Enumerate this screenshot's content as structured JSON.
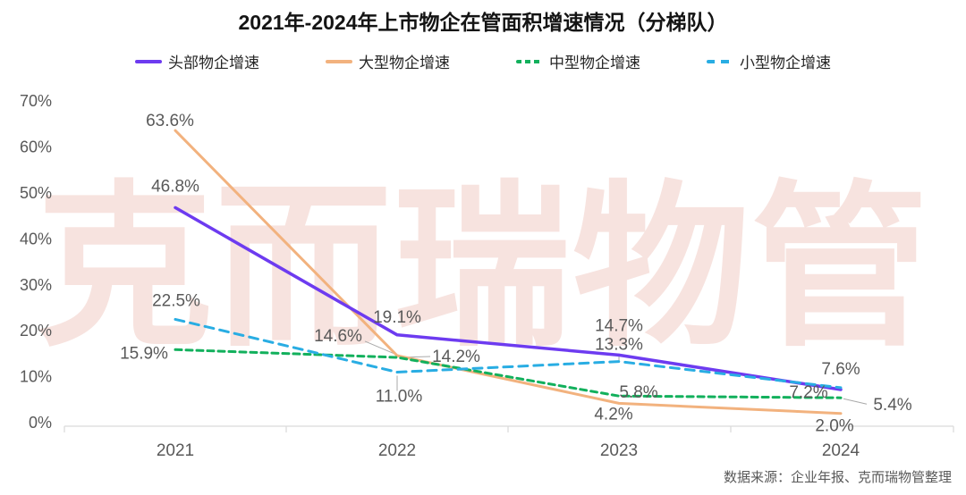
{
  "title": "2021年-2024年上市物企在管面积增速情况（分梯队）",
  "source": "数据来源：企业年报、克而瑞物管整理",
  "watermark": "克而瑞物管",
  "chart_data": {
    "type": "line",
    "categories": [
      "2021",
      "2022",
      "2023",
      "2024"
    ],
    "series": [
      {
        "name": "头部物企增速",
        "color": "#6D3BF0",
        "style": "solid",
        "values": [
          46.8,
          19.1,
          14.7,
          7.2
        ]
      },
      {
        "name": "大型物企增速",
        "color": "#F2B27E",
        "style": "solid",
        "values": [
          63.6,
          14.6,
          4.2,
          2.0
        ]
      },
      {
        "name": "中型物企增速",
        "color": "#12B05C",
        "style": "dashed",
        "values": [
          15.9,
          14.2,
          5.8,
          5.4
        ]
      },
      {
        "name": "小型物企增速",
        "color": "#29ADE3",
        "style": "dashed",
        "values": [
          22.5,
          11.0,
          13.3,
          7.6
        ]
      }
    ],
    "xlabel": "",
    "ylabel": "",
    "ylim": [
      0,
      70
    ],
    "ytick_step": 10,
    "ytick_suffix": "%",
    "label_suffix": "%",
    "grid": false,
    "legend_position": "top",
    "axis_color": "#d9d9d9",
    "text_color": "#595959",
    "watermark_color": "#f7e3df"
  }
}
